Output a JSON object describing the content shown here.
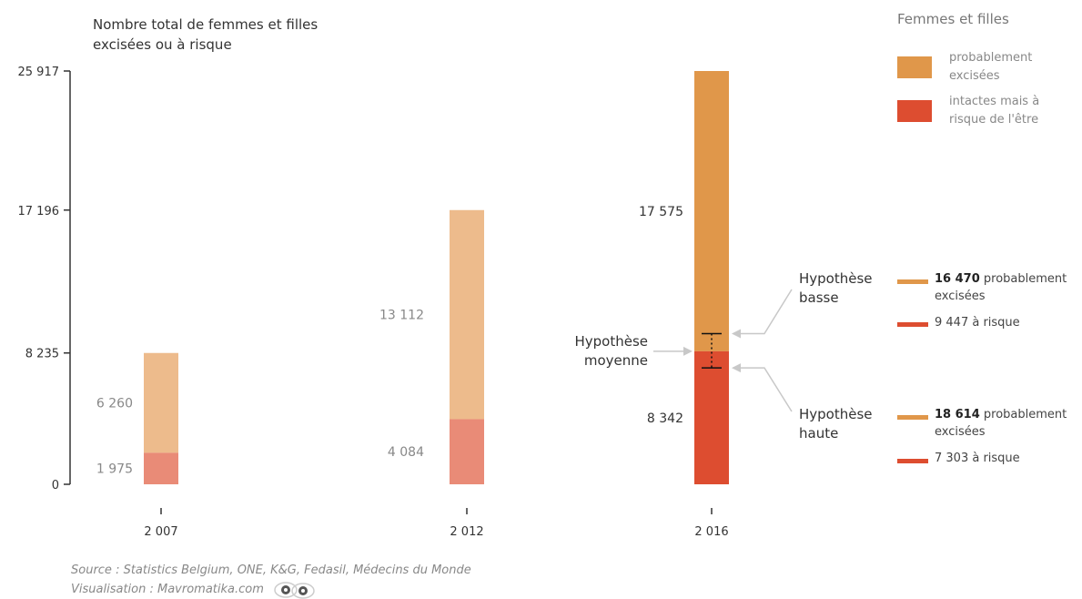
{
  "colors": {
    "orange_light": "#EDBB8C",
    "red_light": "#E98B77",
    "orange": "#E0974A",
    "red": "#DD4D30"
  },
  "chart_data": {
    "type": "bar",
    "stacked": true,
    "categories": [
      "2 007",
      "2 012",
      "2 016"
    ],
    "series": [
      {
        "name": "intactes mais à risque de l'être",
        "values": [
          1975,
          4084,
          8342
        ]
      },
      {
        "name": "probablement excisées",
        "values": [
          6260,
          13112,
          17575
        ]
      }
    ],
    "totals": [
      8235,
      17196,
      25917
    ],
    "title": "Nombre total de femmes et filles excisées ou à risque",
    "y_tick_labels": [
      "0",
      "8 235",
      "17 196",
      "25 917"
    ],
    "y_tick_values": [
      0,
      8235,
      17196,
      25917
    ],
    "ylim": [
      0,
      25917
    ],
    "segment_labels": {
      "risk": [
        "1 975",
        "4 084",
        "8 342"
      ],
      "excised": [
        "6 260",
        "13 112",
        "17 575"
      ]
    },
    "legend": {
      "title": "Femmes et filles",
      "items": [
        "probablement excisées",
        "intactes mais à risque de l'être"
      ]
    },
    "hypotheses": {
      "middle_label": "Hypothèse moyenne",
      "low": {
        "label": "Hypothèse basse",
        "excised_value": "16 470",
        "excised_text": "probablement excisées",
        "risk_text": "9 447 à risque",
        "boundary": 9447
      },
      "high": {
        "label": "Hypothèse haute",
        "excised_value": "18 614",
        "excised_text": "probablement excisées",
        "risk_text": "7 303 à risque",
        "boundary": 7303
      }
    }
  },
  "source": {
    "line1": "Source : Statistics Belgium, ONE, K&G, Fedasil, Médecins du Monde",
    "line2": "Visualisation : Mavromatika.com"
  }
}
